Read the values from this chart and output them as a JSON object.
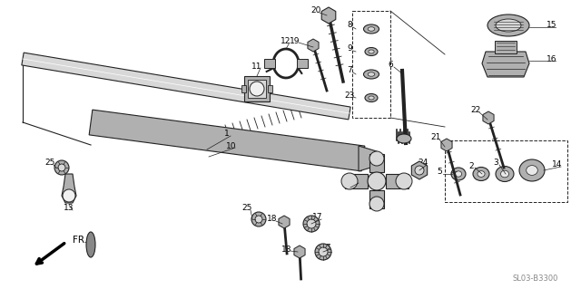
{
  "bg_color": "#ffffff",
  "diagram_code": "SL03-B3300",
  "fr_label": "FR.",
  "line_color": "#222222",
  "gray_light": "#d8d8d8",
  "gray_mid": "#b0b0b0",
  "gray_dark": "#888888"
}
